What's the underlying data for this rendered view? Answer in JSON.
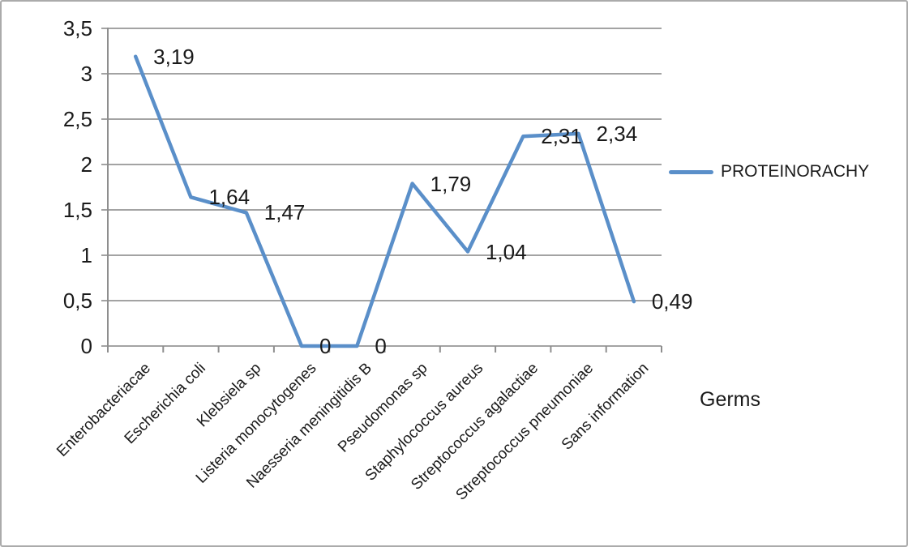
{
  "chart_data": {
    "type": "line",
    "title": "",
    "categories": [
      "Enterobacteriacae",
      "Escherichia coli",
      "Klebsiela sp",
      "Listeria monocytogenes",
      "Naesseria meningitidis B",
      "Pseudomonas sp",
      "Staphylococcus aureus",
      "Streptococcus agalactiae",
      "Streptococcus pneumoniae",
      "Sans information"
    ],
    "series": [
      {
        "name": "PROTEINORACHY",
        "values": [
          3.19,
          1.64,
          1.47,
          0,
          0,
          1.79,
          1.04,
          2.31,
          2.34,
          0.49
        ]
      }
    ],
    "data_labels": [
      "3,19",
      "1,64",
      "1,47",
      "0",
      "0",
      "1,79",
      "1,04",
      "2,31",
      "2,34",
      "0,49"
    ],
    "xlabel": "Germs",
    "ylabel": "",
    "ylim": [
      0,
      3.5
    ],
    "ytick_step": 0.5,
    "ytick_labels": [
      "0",
      "0,5",
      "1",
      "1,5",
      "2",
      "2,5",
      "3",
      "3,5"
    ],
    "legend": {
      "label": "PROTEINORACHY",
      "position": "right"
    },
    "grid": true,
    "colors": {
      "line": "#5a8fc9",
      "grid": "#969696",
      "axis": "#8e8e8e",
      "text": "#1a1a1a"
    }
  }
}
